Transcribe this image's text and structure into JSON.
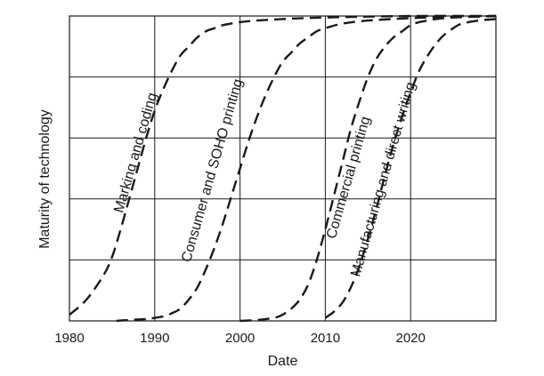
{
  "chart_data": {
    "type": "line",
    "title": "",
    "xlabel": "Date",
    "ylabel": "Maturity of technology",
    "xlim": [
      1980,
      2030
    ],
    "ylim": [
      0,
      1
    ],
    "x_ticks": [
      1980,
      1990,
      2000,
      2010,
      2020
    ],
    "y_ticks": [],
    "y_grid": [
      0.2,
      0.4,
      0.6,
      0.8,
      1.0
    ],
    "grid": true,
    "legend": "none",
    "line_color": "#1a1a1a",
    "line_style": "dashed",
    "series": [
      {
        "name": "Marking and coding",
        "x": [
          1980,
          1982,
          1984,
          1985,
          1986,
          1987,
          1988,
          1989,
          1990,
          1991,
          1992,
          1993,
          1994,
          1995,
          1996,
          1997,
          1998,
          2000,
          2002,
          2005,
          2010,
          2020,
          2030
        ],
        "y": [
          0.02,
          0.07,
          0.15,
          0.21,
          0.3,
          0.4,
          0.5,
          0.6,
          0.69,
          0.76,
          0.82,
          0.87,
          0.9,
          0.93,
          0.95,
          0.96,
          0.97,
          0.98,
          0.985,
          0.99,
          0.995,
          1.0,
          1.0
        ]
      },
      {
        "name": "Consumer and SOHO printing",
        "x": [
          1985.5,
          1987,
          1989,
          1990,
          1991,
          1992,
          1993,
          1994,
          1995,
          1996,
          1997,
          1998,
          1999,
          2000,
          2001,
          2002,
          2003,
          2004,
          2005,
          2006,
          2007,
          2008,
          2009,
          2010,
          2012,
          2015,
          2020,
          2025,
          2030
        ],
        "y": [
          0.0,
          0.003,
          0.006,
          0.01,
          0.015,
          0.025,
          0.04,
          0.07,
          0.11,
          0.17,
          0.24,
          0.32,
          0.41,
          0.5,
          0.59,
          0.67,
          0.74,
          0.8,
          0.85,
          0.88,
          0.91,
          0.93,
          0.95,
          0.96,
          0.975,
          0.985,
          0.993,
          0.997,
          1.0
        ]
      },
      {
        "name": "Commercial printing",
        "x": [
          2000,
          2002,
          2004,
          2005,
          2006,
          2007,
          2008,
          2009,
          2010,
          2011,
          2012,
          2013,
          2014,
          2015,
          2016,
          2017,
          2018,
          2019,
          2020,
          2021,
          2022,
          2023,
          2025,
          2030
        ],
        "y": [
          0.0,
          0.003,
          0.01,
          0.02,
          0.04,
          0.07,
          0.12,
          0.2,
          0.3,
          0.41,
          0.52,
          0.63,
          0.72,
          0.8,
          0.86,
          0.9,
          0.93,
          0.95,
          0.97,
          0.98,
          0.985,
          0.99,
          0.995,
          1.0
        ]
      },
      {
        "name": "Manufacturing and direct writing",
        "x": [
          2010,
          2011,
          2012,
          2013,
          2014,
          2015,
          2016,
          2017,
          2018,
          2019,
          2020,
          2021,
          2022,
          2023,
          2024,
          2025,
          2026,
          2028,
          2030
        ],
        "y": [
          0.01,
          0.03,
          0.06,
          0.11,
          0.18,
          0.27,
          0.37,
          0.48,
          0.58,
          0.67,
          0.75,
          0.82,
          0.87,
          0.91,
          0.94,
          0.96,
          0.975,
          0.985,
          0.99
        ]
      }
    ]
  }
}
